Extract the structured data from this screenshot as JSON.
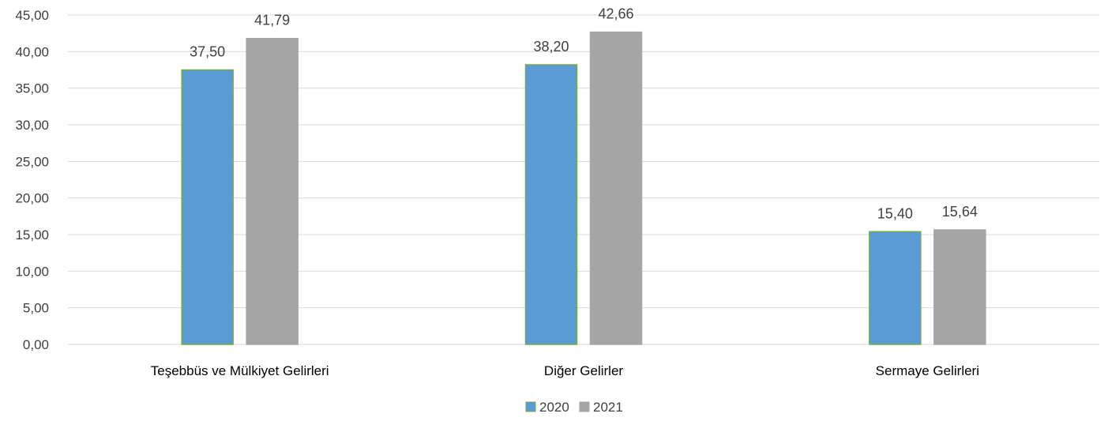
{
  "chart_data": {
    "type": "bar",
    "categories": [
      "Teşebbüs ve Mülkiyet Gelirleri",
      "Diğer Gelirler",
      "Sermaye Gelirleri"
    ],
    "series": [
      {
        "name": "2020",
        "values": [
          37.5,
          38.2,
          15.4
        ],
        "labels": [
          "37,50",
          "38,20",
          "15,40"
        ],
        "color": "#5b9bd5",
        "border": "#70ad47"
      },
      {
        "name": "2021",
        "values": [
          41.79,
          42.66,
          15.64
        ],
        "labels": [
          "41,79",
          "42,66",
          "15,64"
        ],
        "color": "#a5a5a5",
        "border": "#a5a5a5"
      }
    ],
    "ylim": [
      0,
      45
    ],
    "yticks": [
      0,
      5,
      10,
      15,
      20,
      25,
      30,
      35,
      40,
      45
    ],
    "ytick_labels": [
      "0,00",
      "5,00",
      "10,00",
      "15,00",
      "20,00",
      "25,00",
      "30,00",
      "35,00",
      "40,00",
      "45,00"
    ],
    "grid": true,
    "legend": "bottom-center",
    "title": "",
    "xlabel": "",
    "ylabel": ""
  }
}
